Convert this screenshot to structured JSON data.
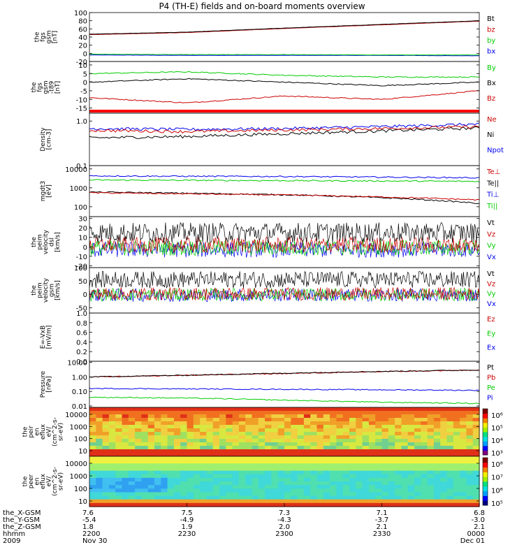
{
  "title": "P4 (TH-E) fields and on-board moments overview",
  "panels": [
    {
      "id": "fgs",
      "ylabel": [
        "the",
        "fgs",
        "gsm",
        "[nT]"
      ],
      "ticks": [
        "100",
        "80",
        "60",
        "40",
        "20",
        "0",
        "-20"
      ],
      "ylim": [
        -20,
        100
      ],
      "legend": [
        {
          "label": "Bt",
          "color": "#000000"
        },
        {
          "label": "bz",
          "color": "#cc0000"
        },
        {
          "label": "by",
          "color": "#00cc00"
        },
        {
          "label": "bx",
          "color": "#0000ee"
        }
      ]
    },
    {
      "id": "fgs_dsl",
      "ylabel": [
        "the",
        "fgs",
        "gsm",
        "-t89",
        "[nT]"
      ],
      "ticks": [
        "10",
        "5",
        "0",
        "-5",
        "-10",
        "-15"
      ],
      "ylim": [
        -18,
        12
      ],
      "legend": [
        {
          "label": "By",
          "color": "#00cc00"
        },
        {
          "label": "Bx",
          "color": "#000000"
        },
        {
          "label": "Bz",
          "color": "#cc0000"
        }
      ]
    },
    {
      "id": "density",
      "ylabel": [
        "Density",
        "[cm-3]"
      ],
      "log": true,
      "ticks": [
        "1.0",
        "0.1"
      ],
      "ylim": [
        0.1,
        1.5
      ],
      "legend": [
        {
          "label": "Ne",
          "color": "#cc0000"
        },
        {
          "label": "Ni",
          "color": "#000000"
        },
        {
          "label": "Npot",
          "color": "#0000ee"
        }
      ]
    },
    {
      "id": "temperature",
      "ylabel": [
        "mgdt3",
        "[eV]"
      ],
      "log": true,
      "ticks": [
        "10000",
        "1000",
        "100"
      ],
      "ylim": [
        30,
        15000
      ],
      "legend": [
        {
          "label": "Te⊥",
          "color": "#cc0000"
        },
        {
          "label": "Te||",
          "color": "#000000"
        },
        {
          "label": "Ti⊥",
          "color": "#0000ee"
        },
        {
          "label": "Ti||",
          "color": "#00cc00"
        }
      ]
    },
    {
      "id": "peim_velocity",
      "ylabel": [
        "the",
        "peim",
        "velocity",
        "dsl",
        "[km/s]"
      ],
      "ticks": [
        "30",
        "20",
        "10",
        "0",
        "-10",
        "-20"
      ],
      "ylim": [
        -22,
        32
      ],
      "legend": [
        {
          "label": "Vt",
          "color": "#000000"
        },
        {
          "label": "Vz",
          "color": "#cc0000"
        },
        {
          "label": "Vy",
          "color": "#00cc00"
        },
        {
          "label": "Vx",
          "color": "#0000ee"
        }
      ]
    },
    {
      "id": "peim_velocity_gsm",
      "ylabel": [
        "the",
        "peim",
        "velocity",
        "gsm",
        "[km/s]"
      ],
      "ticks": [
        "100",
        "50",
        "0",
        "-50"
      ],
      "ylim": [
        -70,
        100
      ],
      "legend": [
        {
          "label": "Vt",
          "color": "#000000"
        },
        {
          "label": "Vz",
          "color": "#cc0000"
        },
        {
          "label": "Vy",
          "color": "#00cc00"
        },
        {
          "label": "Vx",
          "color": "#0000ee"
        }
      ]
    },
    {
      "id": "efield",
      "ylabel": [
        "E=-VxB",
        "[mV/m]"
      ],
      "ticks": [
        "1.0",
        "0.8",
        "0.6",
        "0.4",
        "0.2",
        "0.0"
      ],
      "ylim": [
        0,
        1
      ],
      "legend": [
        {
          "label": "Ez",
          "color": "#cc0000"
        },
        {
          "label": "Ey",
          "color": "#00cc00"
        },
        {
          "label": "Ex",
          "color": "#0000ee"
        }
      ]
    },
    {
      "id": "pressure",
      "ylabel": [
        "Pressure",
        "[nPa]"
      ],
      "log": true,
      "ticks": [
        "10.00",
        "1.00",
        "0.10",
        "0.01"
      ],
      "ylim": [
        0.008,
        12
      ],
      "legend": [
        {
          "label": "Pt",
          "color": "#000000"
        },
        {
          "label": "Pb",
          "color": "#cc0000"
        },
        {
          "label": "Pe",
          "color": "#00cc00"
        },
        {
          "label": "Pi",
          "color": "#0000ee"
        }
      ]
    },
    {
      "id": "peir_spectrogram",
      "ylabel": [
        "the",
        "peir",
        "en",
        "eflux",
        "eV/",
        "(cm^2-s-",
        "sr-eV)"
      ],
      "ticks": [
        "10000",
        "1000",
        "100",
        "10"
      ],
      "colorbar_ticks": [
        "10⁶",
        "10⁵",
        "10⁴",
        "10³"
      ]
    },
    {
      "id": "peer_spectrogram",
      "ylabel": [
        "the",
        "peer",
        "en",
        "eflux",
        "eV/",
        "(cm^2-s-",
        "sr-eV)"
      ],
      "ticks": [
        "10000",
        "1000",
        "100",
        "10"
      ],
      "colorbar_ticks": [
        "10⁸",
        "10⁷",
        "10⁶",
        "10⁵"
      ]
    }
  ],
  "xaxis": {
    "rows": [
      {
        "label": "the_X-GSM",
        "values": [
          "7.6",
          "7.5",
          "7.3",
          "7.1",
          "6.8"
        ]
      },
      {
        "label": "the_Y-GSM",
        "values": [
          "-5.4",
          "-4.9",
          "-4.3",
          "-3.7",
          "-3.0"
        ]
      },
      {
        "label": "the_Z-GSM",
        "values": [
          "1.8",
          "1.9",
          "2.0",
          "2.1",
          "2.1"
        ]
      },
      {
        "label": "hhmm",
        "values": [
          "2200",
          "2230",
          "2300",
          "2330",
          "0000"
        ]
      },
      {
        "label": "2009",
        "values": [
          "Nov 30",
          "",
          "",
          "",
          "Dec 01"
        ]
      }
    ]
  },
  "chart_data": {
    "type": "line",
    "title": "P4 (TH-E) fields and on-board moments overview",
    "x": [
      "2200",
      "2230",
      "2300",
      "2330",
      "0000"
    ],
    "series": [
      {
        "name": "Bt",
        "values": [
          47,
          52,
          62,
          71,
          80
        ]
      },
      {
        "name": "bz",
        "values": [
          46,
          51,
          61,
          70,
          79
        ]
      },
      {
        "name": "by",
        "values": [
          -2,
          -3,
          -3,
          -4,
          -4
        ]
      },
      {
        "name": "bx",
        "values": [
          -4,
          -5,
          -5,
          -5,
          -6
        ]
      },
      {
        "name": "By",
        "values": [
          5,
          6,
          4,
          3,
          3
        ]
      },
      {
        "name": "Bx",
        "values": [
          0,
          2,
          0,
          -2,
          0
        ]
      },
      {
        "name": "Bz",
        "values": [
          -9,
          -12,
          -8,
          -10,
          -5
        ]
      },
      {
        "name": "Ne",
        "values": [
          0.62,
          0.58,
          0.63,
          0.68,
          0.75
        ]
      },
      {
        "name": "Ni",
        "values": [
          0.42,
          0.45,
          0.52,
          0.6,
          0.7
        ]
      },
      {
        "name": "Npot",
        "values": [
          0.68,
          0.65,
          0.68,
          0.75,
          0.85
        ]
      },
      {
        "name": "Te⊥",
        "values": [
          550,
          480,
          420,
          330,
          230
        ]
      },
      {
        "name": "Te||",
        "values": [
          600,
          520,
          430,
          300,
          150
        ]
      },
      {
        "name": "Ti⊥",
        "values": [
          4300,
          4100,
          4000,
          3700,
          3400
        ]
      },
      {
        "name": "Ti||",
        "values": [
          2600,
          2500,
          2400,
          2300,
          2200
        ]
      },
      {
        "name": "Pt",
        "values": [
          1.0,
          1.3,
          1.8,
          2.4,
          3.0
        ]
      },
      {
        "name": "Pb",
        "values": [
          1.0,
          1.3,
          1.7,
          2.3,
          2.9
        ]
      },
      {
        "name": "Pe",
        "values": [
          0.04,
          0.035,
          0.025,
          0.018,
          0.015
        ]
      },
      {
        "name": "Pi",
        "values": [
          0.16,
          0.15,
          0.14,
          0.13,
          0.12
        ]
      }
    ],
    "ylim": [
      -20,
      100
    ]
  }
}
